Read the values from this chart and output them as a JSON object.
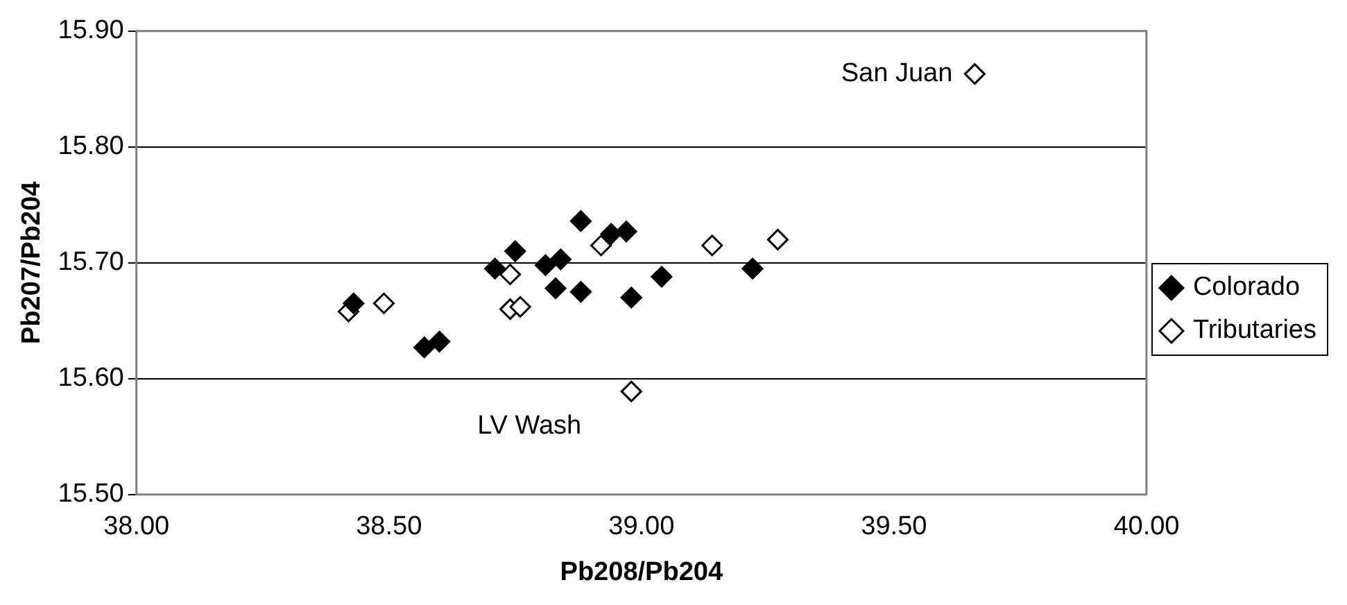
{
  "chart_data": {
    "type": "scatter",
    "xlabel": "Pb208/Pb204",
    "ylabel": "Pb207/Pb204",
    "xlim": [
      38,
      40
    ],
    "xticks": [
      {
        "value": 38,
        "label": "38.00"
      },
      {
        "value": 38.5,
        "label": "38.50"
      },
      {
        "value": 39,
        "label": "39.00"
      },
      {
        "value": 39.5,
        "label": "39.50"
      },
      {
        "value": 40,
        "label": "40.00"
      }
    ],
    "ylim": [
      15.5,
      15.9
    ],
    "yticks": [
      {
        "value": 15.5,
        "label": "15.50"
      },
      {
        "value": 15.6,
        "label": "15.60"
      },
      {
        "value": 15.7,
        "label": "15.70"
      },
      {
        "value": 15.8,
        "label": "15.80"
      },
      {
        "value": 15.9,
        "label": "15.90"
      }
    ],
    "grid": "y",
    "legend": "right",
    "marker": "diamond",
    "series": [
      {
        "name": "Colorado",
        "color": "#000000",
        "x": [
          38.43,
          38.57,
          38.6,
          38.71,
          38.75,
          38.81,
          38.84,
          38.83,
          38.88,
          38.88,
          38.97,
          38.98,
          39.04,
          39.22,
          38.94
        ],
        "values": [
          15.665,
          15.627,
          15.632,
          15.695,
          15.71,
          15.698,
          15.703,
          15.678,
          15.675,
          15.736,
          15.727,
          15.67,
          15.688,
          15.695,
          15.725
        ]
      },
      {
        "name": "Tributaries",
        "color": "#ffffff",
        "x": [
          38.42,
          38.49,
          38.74,
          38.74,
          38.76,
          38.92,
          39.14,
          39.27,
          38.98,
          39.66
        ],
        "values": [
          15.658,
          15.665,
          15.69,
          15.66,
          15.662,
          15.715,
          15.715,
          15.72,
          15.589,
          15.863
        ]
      }
    ],
    "annotations": [
      {
        "text": "San Juan",
        "x": 39.66,
        "y": 15.863
      },
      {
        "text": "LV Wash",
        "x": 38.98,
        "y": 15.589
      }
    ]
  }
}
